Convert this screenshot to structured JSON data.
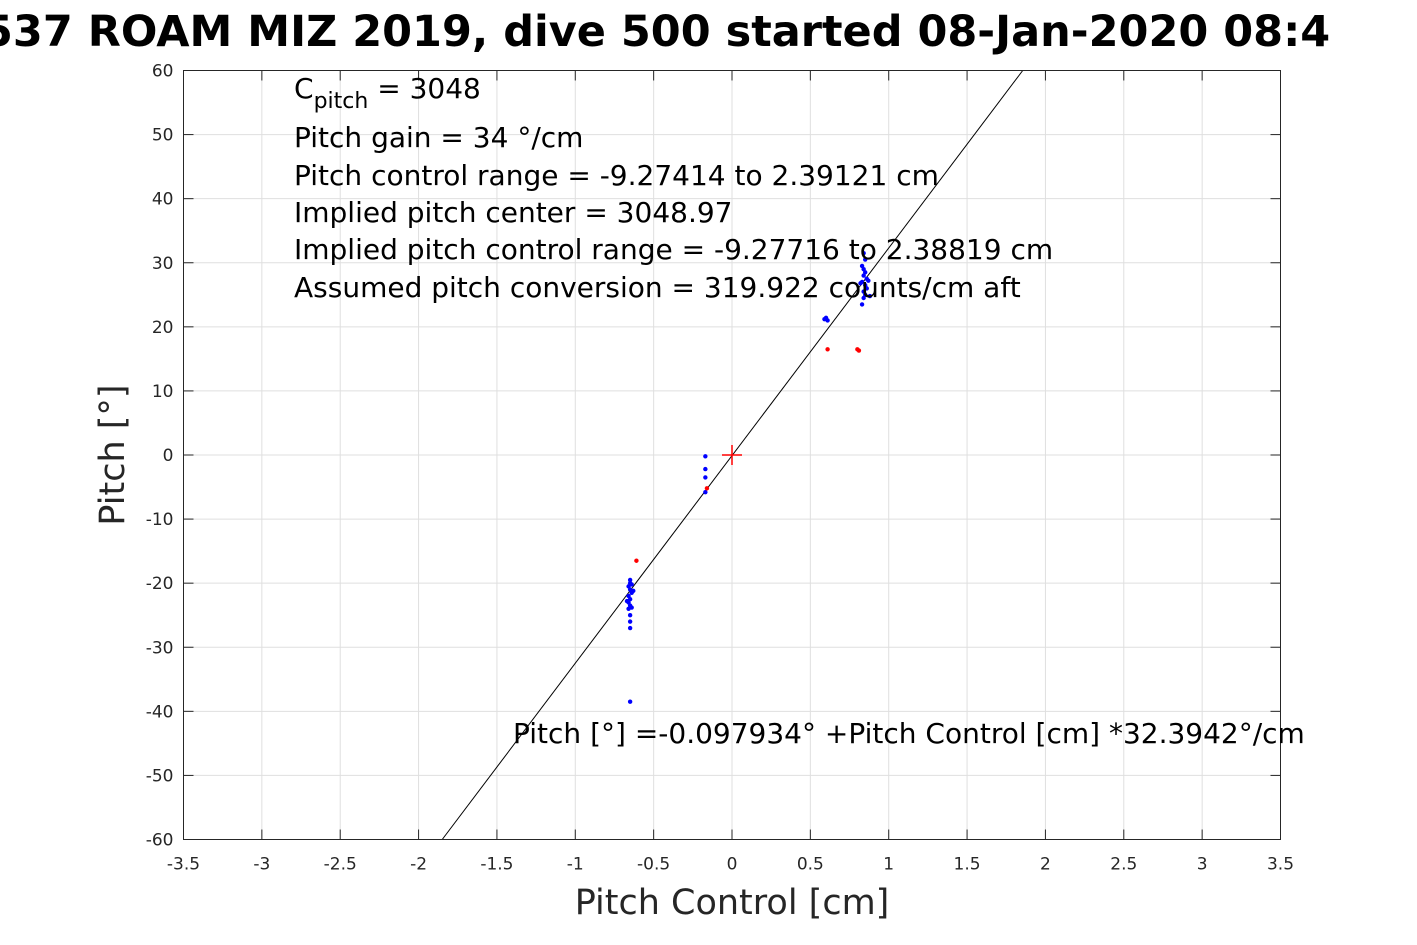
{
  "chart_data": {
    "type": "scatter",
    "title": "537 ROAM MIZ 2019, dive 500 started 08-Jan-2020 08:4",
    "xlabel": "Pitch Control [cm]",
    "ylabel": "Pitch [°]",
    "xlim": [
      -3.5,
      3.5
    ],
    "ylim": [
      -60,
      60
    ],
    "x_ticks": [
      -3.5,
      -3,
      -2.5,
      -2,
      -1.5,
      -1,
      -0.5,
      0,
      0.5,
      1,
      1.5,
      2,
      2.5,
      3,
      3.5
    ],
    "y_ticks": [
      -60,
      -50,
      -40,
      -30,
      -20,
      -10,
      0,
      10,
      20,
      30,
      40,
      50,
      60
    ],
    "x_tick_labels": [
      "-3.5",
      "-3",
      "-2.5",
      "-2",
      "-1.5",
      "-1",
      "-0.5",
      "0",
      "0.5",
      "1",
      "1.5",
      "2",
      "2.5",
      "3",
      "3.5"
    ],
    "y_tick_labels": [
      "-60",
      "-50",
      "-40",
      "-30",
      "-20",
      "-10",
      "0",
      "10",
      "20",
      "30",
      "40",
      "50",
      "60"
    ],
    "grid": true,
    "series": [
      {
        "color": "#0000ff",
        "points": [
          [
            -0.65,
            -19.5
          ],
          [
            -0.65,
            -20.0
          ],
          [
            -0.66,
            -20.5
          ],
          [
            -0.65,
            -21.0
          ],
          [
            -0.64,
            -21.5
          ],
          [
            -0.66,
            -22.0
          ],
          [
            -0.65,
            -22.5
          ],
          [
            -0.66,
            -23.0
          ],
          [
            -0.65,
            -23.5
          ],
          [
            -0.66,
            -24.0
          ],
          [
            -0.65,
            -25.0
          ],
          [
            -0.65,
            -26.0
          ],
          [
            -0.65,
            -27.0
          ],
          [
            -0.64,
            -20.2
          ],
          [
            -0.63,
            -21.2
          ],
          [
            -0.67,
            -22.8
          ],
          [
            -0.64,
            -23.8
          ],
          [
            -0.65,
            -38.5
          ],
          [
            -0.17,
            -0.2
          ],
          [
            -0.17,
            -2.2
          ],
          [
            -0.17,
            -3.5
          ],
          [
            -0.17,
            -5.8
          ],
          [
            0.59,
            21.2
          ],
          [
            0.6,
            21.4
          ],
          [
            0.61,
            21.0
          ],
          [
            0.83,
            23.5
          ],
          [
            0.84,
            24.5
          ],
          [
            0.85,
            25.0
          ],
          [
            0.84,
            25.5
          ],
          [
            0.86,
            26.0
          ],
          [
            0.85,
            26.5
          ],
          [
            0.83,
            27.0
          ],
          [
            0.86,
            27.5
          ],
          [
            0.84,
            28.0
          ],
          [
            0.85,
            28.5
          ],
          [
            0.84,
            29.0
          ],
          [
            0.83,
            29.5
          ],
          [
            0.85,
            30.5
          ],
          [
            0.84,
            31.5
          ],
          [
            0.87,
            27.2
          ],
          [
            0.82,
            26.8
          ],
          [
            0.88,
            24.8
          ]
        ]
      },
      {
        "color": "#ff0000",
        "points": [
          [
            -0.61,
            -16.5
          ],
          [
            -0.16,
            -5.2
          ],
          [
            0.61,
            16.5
          ],
          [
            0.8,
            16.5
          ],
          [
            0.81,
            16.3
          ]
        ]
      }
    ],
    "fit_line": {
      "intercept": -0.097934,
      "slope": 32.3942
    },
    "center_marker": {
      "x": 0,
      "y": 0,
      "color": "#ff0000"
    },
    "annotations": {
      "c_pitch_base": "C",
      "c_pitch_sub": "pitch",
      "c_pitch_rest": " = 3048",
      "lines": [
        "Pitch gain = 34 °/cm",
        "Pitch control range = -9.27414 to 2.39121 cm",
        "Implied pitch center = 3048.97",
        "Implied pitch control range = -9.27716 to 2.38819 cm",
        "Assumed pitch conversion = 319.922 counts/cm aft"
      ],
      "equation": "Pitch [°] =-0.097934° +Pitch Control [cm] *32.3942°/cm"
    }
  }
}
